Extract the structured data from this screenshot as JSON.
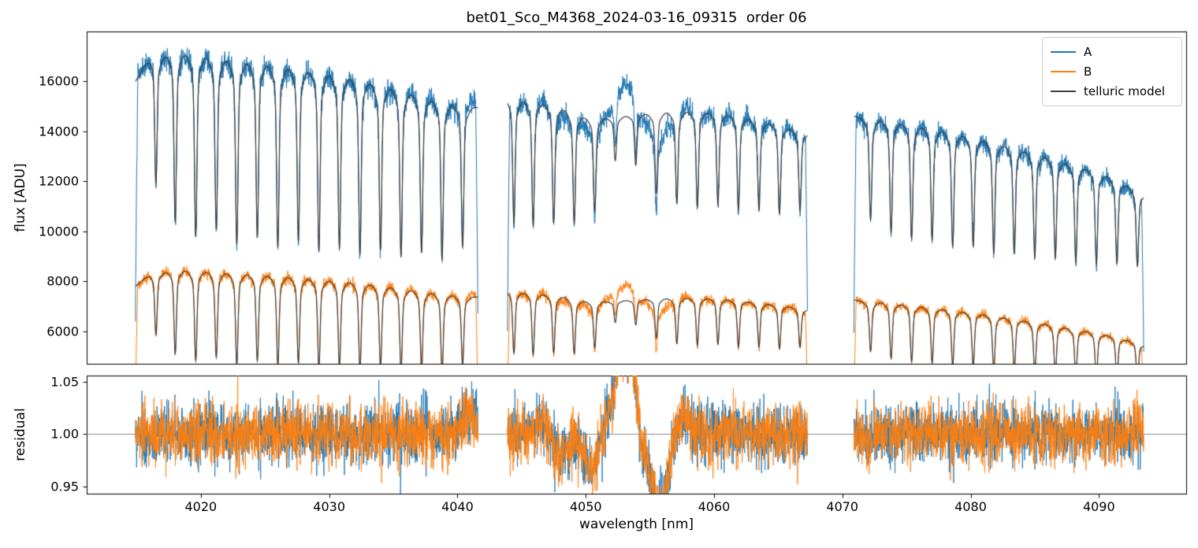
{
  "chart_data": {
    "type": "line",
    "title": "bet01_Sco_M4368_2024-03-16_09315  order 06",
    "xlabel": "wavelength [nm]",
    "ylabel_top": "flux [ADU]",
    "ylabel_bottom": "residual",
    "xlim": [
      4011.1,
      4096.8
    ],
    "ylim_top": [
      4700,
      18000
    ],
    "ylim_bottom": [
      0.943,
      1.056
    ],
    "xticks": [
      4020,
      4030,
      4040,
      4050,
      4060,
      4070,
      4080,
      4090
    ],
    "yticks_top": [
      6000,
      8000,
      10000,
      12000,
      14000,
      16000
    ],
    "yticks_bottom": [
      0.95,
      1.0,
      1.05
    ],
    "grid": false,
    "reference_line_y": 1.0,
    "colors": {
      "A": "#1f77b4",
      "B": "#ff7f0e",
      "model": "#3d3d3d",
      "refline": "#8a8a8a",
      "spine": "#000000",
      "background": "#ffffff"
    },
    "legend": {
      "position": "upper right",
      "entries": [
        {
          "label": "A",
          "color": "#1f77b4"
        },
        {
          "label": "B",
          "color": "#ff7f0e"
        },
        {
          "label": "telluric model",
          "color": "#3d3d3d"
        }
      ]
    },
    "segments_nm": [
      [
        4014.9,
        4041.6
      ],
      [
        4043.9,
        4067.3
      ],
      [
        4070.9,
        4093.5
      ]
    ],
    "series": {
      "noise_sigma": 0.014,
      "line_core_sigma_nm": 0.09,
      "line_wing_sigma_nm": 0.35,
      "A_continuum": [
        [
          4014.9,
          16000
        ],
        [
          4016,
          17000
        ],
        [
          4018,
          17250
        ],
        [
          4020,
          17100
        ],
        [
          4023,
          16900
        ],
        [
          4026,
          16700
        ],
        [
          4029,
          16450
        ],
        [
          4032,
          16200
        ],
        [
          4035,
          15800
        ],
        [
          4038,
          15350
        ],
        [
          4041.6,
          14950
        ],
        [
          4043.9,
          15400
        ],
        [
          4046,
          15250
        ],
        [
          4048,
          15000
        ],
        [
          4050,
          14600
        ],
        [
          4052,
          14550
        ],
        [
          4054,
          14700
        ],
        [
          4056,
          14800
        ],
        [
          4058,
          14850
        ],
        [
          4060,
          14800
        ],
        [
          4062,
          14650
        ],
        [
          4064,
          14400
        ],
        [
          4066,
          14150
        ],
        [
          4067.3,
          13950
        ],
        [
          4070.9,
          14600
        ],
        [
          4073,
          14500
        ],
        [
          4075,
          14350
        ],
        [
          4077,
          14150
        ],
        [
          4079,
          13950
        ],
        [
          4081,
          13700
        ],
        [
          4083,
          13450
        ],
        [
          4085,
          13150
        ],
        [
          4087,
          12850
        ],
        [
          4089,
          12550
        ],
        [
          4091,
          12200
        ],
        [
          4093.5,
          11500
        ]
      ],
      "B_continuum": [
        [
          4014.9,
          7800
        ],
        [
          4016,
          8300
        ],
        [
          4018,
          8500
        ],
        [
          4020,
          8450
        ],
        [
          4023,
          8350
        ],
        [
          4026,
          8250
        ],
        [
          4029,
          8120
        ],
        [
          4032,
          8000
        ],
        [
          4035,
          7800
        ],
        [
          4038,
          7570
        ],
        [
          4041.6,
          7370
        ],
        [
          4043.9,
          7650
        ],
        [
          4046,
          7550
        ],
        [
          4048,
          7420
        ],
        [
          4050,
          7220
        ],
        [
          4052,
          7200
        ],
        [
          4054,
          7280
        ],
        [
          4056,
          7330
        ],
        [
          4058,
          7350
        ],
        [
          4060,
          7330
        ],
        [
          4062,
          7250
        ],
        [
          4064,
          7130
        ],
        [
          4066,
          7000
        ],
        [
          4067.3,
          6900
        ],
        [
          4070.9,
          7250
        ],
        [
          4073,
          7180
        ],
        [
          4075,
          7080
        ],
        [
          4077,
          6960
        ],
        [
          4079,
          6840
        ],
        [
          4081,
          6700
        ],
        [
          4083,
          6550
        ],
        [
          4085,
          6380
        ],
        [
          4087,
          6200
        ],
        [
          4089,
          6020
        ],
        [
          4091,
          5830
        ],
        [
          4093.5,
          5480
        ]
      ],
      "telluric_lines": [
        [
          4016.5,
          0.3
        ],
        [
          4018.0,
          0.4
        ],
        [
          4019.6,
          0.43
        ],
        [
          4021.2,
          0.41
        ],
        [
          4022.8,
          0.44
        ],
        [
          4024.4,
          0.42
        ],
        [
          4026.0,
          0.44
        ],
        [
          4027.6,
          0.42
        ],
        [
          4029.2,
          0.44
        ],
        [
          4030.8,
          0.43
        ],
        [
          4032.4,
          0.44
        ],
        [
          4034.0,
          0.42
        ],
        [
          4035.6,
          0.43
        ],
        [
          4037.2,
          0.41
        ],
        [
          4038.8,
          0.42
        ],
        [
          4040.4,
          0.38
        ],
        [
          4044.4,
          0.33
        ],
        [
          4045.9,
          0.33
        ],
        [
          4047.5,
          0.31
        ],
        [
          4049.1,
          0.3
        ],
        [
          4050.7,
          0.26
        ],
        [
          4052.3,
          0.12
        ],
        [
          4053.9,
          0.14
        ],
        [
          4055.5,
          0.22
        ],
        [
          4057.1,
          0.25
        ],
        [
          4058.7,
          0.26
        ],
        [
          4060.3,
          0.25
        ],
        [
          4061.9,
          0.26
        ],
        [
          4063.5,
          0.25
        ],
        [
          4065.1,
          0.25
        ],
        [
          4066.7,
          0.23
        ],
        [
          4072.2,
          0.28
        ],
        [
          4073.8,
          0.31
        ],
        [
          4075.4,
          0.32
        ],
        [
          4077.0,
          0.32
        ],
        [
          4078.6,
          0.33
        ],
        [
          4080.2,
          0.32
        ],
        [
          4081.8,
          0.33
        ],
        [
          4083.4,
          0.32
        ],
        [
          4085.0,
          0.32
        ],
        [
          4086.6,
          0.31
        ],
        [
          4088.2,
          0.31
        ],
        [
          4089.8,
          0.3
        ],
        [
          4091.4,
          0.28
        ],
        [
          4093.0,
          0.26
        ]
      ],
      "residual_features": [
        {
          "x": 4040.9,
          "a": 0.022,
          "w": 0.5
        },
        {
          "x": 4046.6,
          "a": 0.012,
          "w": 0.45
        },
        {
          "x": 4048.1,
          "a": -0.018,
          "w": 0.7
        },
        {
          "x": 4050.4,
          "a": -0.032,
          "w": 0.55
        },
        {
          "x": 4053.1,
          "a": 0.09,
          "w": 0.8
        },
        {
          "x": 4054.3,
          "a": -0.03,
          "w": 0.25
        },
        {
          "x": 4055.7,
          "a": -0.075,
          "w": 0.65
        },
        {
          "x": 4057.6,
          "a": 0.018,
          "w": 0.5
        }
      ]
    }
  }
}
